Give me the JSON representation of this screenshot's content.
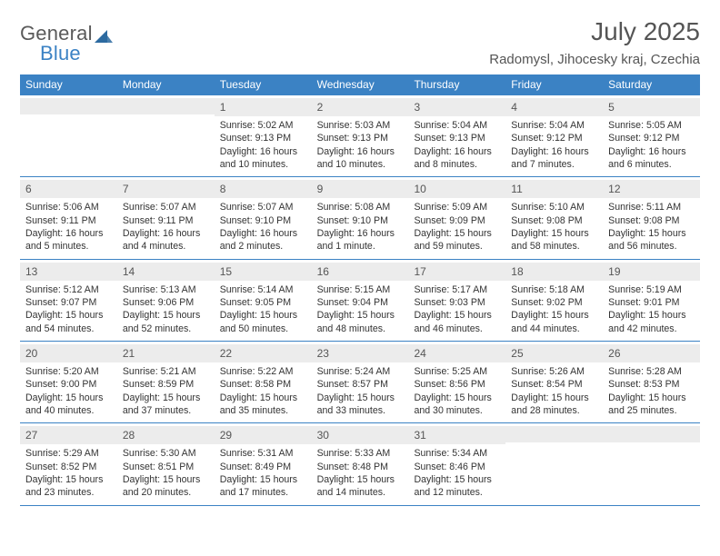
{
  "logo": {
    "general": "General",
    "blue": "Blue",
    "tri_color": "#2c6aa0"
  },
  "title": "July 2025",
  "location": "Radomysl, Jihocesky kraj, Czechia",
  "colors": {
    "header_bg": "#3b82c4",
    "header_text": "#ffffff",
    "band_bg": "#ececec",
    "rule": "#3b82c4",
    "text": "#333333",
    "title_text": "#555555"
  },
  "day_labels": [
    "Sunday",
    "Monday",
    "Tuesday",
    "Wednesday",
    "Thursday",
    "Friday",
    "Saturday"
  ],
  "start_weekday_index": 2,
  "days": [
    {
      "n": "1",
      "sunrise": "5:02 AM",
      "sunset": "9:13 PM",
      "dl1": "Daylight: 16 hours",
      "dl2": "and 10 minutes."
    },
    {
      "n": "2",
      "sunrise": "5:03 AM",
      "sunset": "9:13 PM",
      "dl1": "Daylight: 16 hours",
      "dl2": "and 10 minutes."
    },
    {
      "n": "3",
      "sunrise": "5:04 AM",
      "sunset": "9:13 PM",
      "dl1": "Daylight: 16 hours",
      "dl2": "and 8 minutes."
    },
    {
      "n": "4",
      "sunrise": "5:04 AM",
      "sunset": "9:12 PM",
      "dl1": "Daylight: 16 hours",
      "dl2": "and 7 minutes."
    },
    {
      "n": "5",
      "sunrise": "5:05 AM",
      "sunset": "9:12 PM",
      "dl1": "Daylight: 16 hours",
      "dl2": "and 6 minutes."
    },
    {
      "n": "6",
      "sunrise": "5:06 AM",
      "sunset": "9:11 PM",
      "dl1": "Daylight: 16 hours",
      "dl2": "and 5 minutes."
    },
    {
      "n": "7",
      "sunrise": "5:07 AM",
      "sunset": "9:11 PM",
      "dl1": "Daylight: 16 hours",
      "dl2": "and 4 minutes."
    },
    {
      "n": "8",
      "sunrise": "5:07 AM",
      "sunset": "9:10 PM",
      "dl1": "Daylight: 16 hours",
      "dl2": "and 2 minutes."
    },
    {
      "n": "9",
      "sunrise": "5:08 AM",
      "sunset": "9:10 PM",
      "dl1": "Daylight: 16 hours",
      "dl2": "and 1 minute."
    },
    {
      "n": "10",
      "sunrise": "5:09 AM",
      "sunset": "9:09 PM",
      "dl1": "Daylight: 15 hours",
      "dl2": "and 59 minutes."
    },
    {
      "n": "11",
      "sunrise": "5:10 AM",
      "sunset": "9:08 PM",
      "dl1": "Daylight: 15 hours",
      "dl2": "and 58 minutes."
    },
    {
      "n": "12",
      "sunrise": "5:11 AM",
      "sunset": "9:08 PM",
      "dl1": "Daylight: 15 hours",
      "dl2": "and 56 minutes."
    },
    {
      "n": "13",
      "sunrise": "5:12 AM",
      "sunset": "9:07 PM",
      "dl1": "Daylight: 15 hours",
      "dl2": "and 54 minutes."
    },
    {
      "n": "14",
      "sunrise": "5:13 AM",
      "sunset": "9:06 PM",
      "dl1": "Daylight: 15 hours",
      "dl2": "and 52 minutes."
    },
    {
      "n": "15",
      "sunrise": "5:14 AM",
      "sunset": "9:05 PM",
      "dl1": "Daylight: 15 hours",
      "dl2": "and 50 minutes."
    },
    {
      "n": "16",
      "sunrise": "5:15 AM",
      "sunset": "9:04 PM",
      "dl1": "Daylight: 15 hours",
      "dl2": "and 48 minutes."
    },
    {
      "n": "17",
      "sunrise": "5:17 AM",
      "sunset": "9:03 PM",
      "dl1": "Daylight: 15 hours",
      "dl2": "and 46 minutes."
    },
    {
      "n": "18",
      "sunrise": "5:18 AM",
      "sunset": "9:02 PM",
      "dl1": "Daylight: 15 hours",
      "dl2": "and 44 minutes."
    },
    {
      "n": "19",
      "sunrise": "5:19 AM",
      "sunset": "9:01 PM",
      "dl1": "Daylight: 15 hours",
      "dl2": "and 42 minutes."
    },
    {
      "n": "20",
      "sunrise": "5:20 AM",
      "sunset": "9:00 PM",
      "dl1": "Daylight: 15 hours",
      "dl2": "and 40 minutes."
    },
    {
      "n": "21",
      "sunrise": "5:21 AM",
      "sunset": "8:59 PM",
      "dl1": "Daylight: 15 hours",
      "dl2": "and 37 minutes."
    },
    {
      "n": "22",
      "sunrise": "5:22 AM",
      "sunset": "8:58 PM",
      "dl1": "Daylight: 15 hours",
      "dl2": "and 35 minutes."
    },
    {
      "n": "23",
      "sunrise": "5:24 AM",
      "sunset": "8:57 PM",
      "dl1": "Daylight: 15 hours",
      "dl2": "and 33 minutes."
    },
    {
      "n": "24",
      "sunrise": "5:25 AM",
      "sunset": "8:56 PM",
      "dl1": "Daylight: 15 hours",
      "dl2": "and 30 minutes."
    },
    {
      "n": "25",
      "sunrise": "5:26 AM",
      "sunset": "8:54 PM",
      "dl1": "Daylight: 15 hours",
      "dl2": "and 28 minutes."
    },
    {
      "n": "26",
      "sunrise": "5:28 AM",
      "sunset": "8:53 PM",
      "dl1": "Daylight: 15 hours",
      "dl2": "and 25 minutes."
    },
    {
      "n": "27",
      "sunrise": "5:29 AM",
      "sunset": "8:52 PM",
      "dl1": "Daylight: 15 hours",
      "dl2": "and 23 minutes."
    },
    {
      "n": "28",
      "sunrise": "5:30 AM",
      "sunset": "8:51 PM",
      "dl1": "Daylight: 15 hours",
      "dl2": "and 20 minutes."
    },
    {
      "n": "29",
      "sunrise": "5:31 AM",
      "sunset": "8:49 PM",
      "dl1": "Daylight: 15 hours",
      "dl2": "and 17 minutes."
    },
    {
      "n": "30",
      "sunrise": "5:33 AM",
      "sunset": "8:48 PM",
      "dl1": "Daylight: 15 hours",
      "dl2": "and 14 minutes."
    },
    {
      "n": "31",
      "sunrise": "5:34 AM",
      "sunset": "8:46 PM",
      "dl1": "Daylight: 15 hours",
      "dl2": "and 12 minutes."
    }
  ],
  "labels": {
    "sunrise_prefix": "Sunrise: ",
    "sunset_prefix": "Sunset: "
  }
}
